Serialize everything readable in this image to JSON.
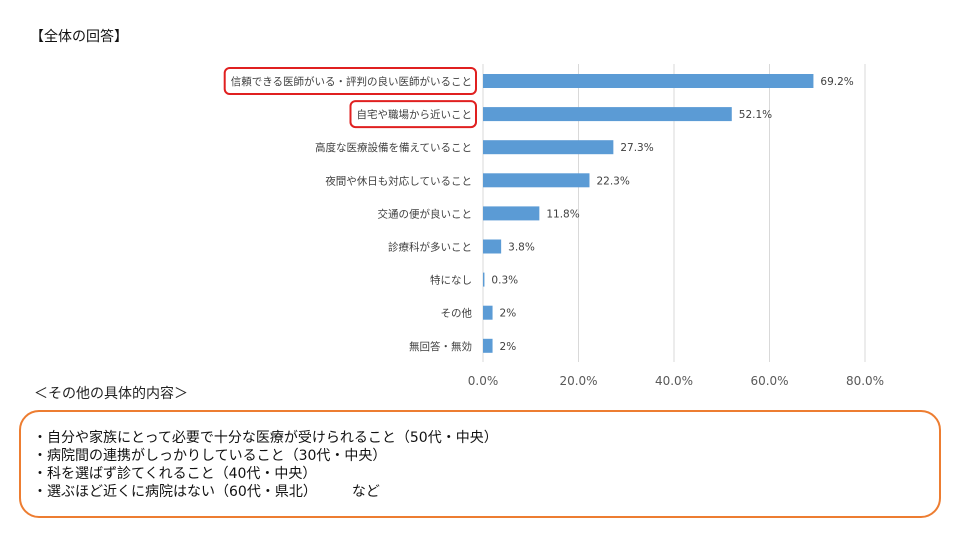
{
  "heading": "【全体の回答】",
  "colors": {
    "bar": "#5b9bd5",
    "highlight": "#e02020",
    "box_border": "#ed7d31",
    "grid": "#d9d9d9"
  },
  "chart_data": {
    "type": "bar",
    "orientation": "horizontal",
    "categories": [
      "信頼できる医師がいる・評判の良い医師がいること",
      "自宅や職場から近いこと",
      "高度な医療設備を備えていること",
      "夜間や休日も対応していること",
      "交通の便が良いこと",
      "診療科が多いこと",
      "特になし",
      "その他",
      "無回答・無効"
    ],
    "values": [
      69.2,
      52.1,
      27.3,
      22.3,
      11.8,
      3.8,
      0.3,
      2,
      2
    ],
    "value_labels": [
      "69.2%",
      "52.1%",
      "27.3%",
      "22.3%",
      "11.8%",
      "3.8%",
      "0.3%",
      "2%",
      "2%"
    ],
    "xlim": [
      0,
      80
    ],
    "xticks": [
      0,
      20,
      40,
      60,
      80
    ],
    "xtick_labels": [
      "0.0%",
      "20.0%",
      "40.0%",
      "60.0%",
      "80.0%"
    ],
    "grid": "vertical",
    "highlighted_categories": [
      0,
      1
    ]
  },
  "details": {
    "title": "＜その他の具体的内容＞",
    "items": [
      "・自分や家族にとって必要で十分な医療が受けられること（50代・中央）",
      "・病院間の連携がしっかりしていること（30代・中央）",
      "・科を選ばず診てくれること（40代・中央）",
      "・選ぶほど近くに病院はない（60代・県北）　　　など"
    ]
  }
}
